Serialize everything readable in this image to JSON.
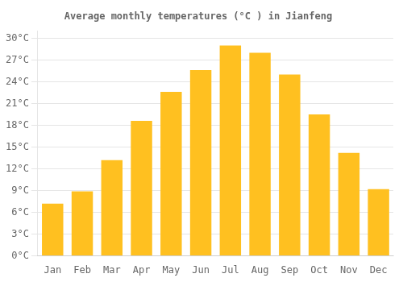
{
  "chart_data": {
    "type": "bar",
    "title": "Average monthly temperatures (°C ) in Jianfeng",
    "categories": [
      "Jan",
      "Feb",
      "Mar",
      "Apr",
      "May",
      "Jun",
      "Jul",
      "Aug",
      "Sep",
      "Oct",
      "Nov",
      "Dec"
    ],
    "values": [
      7.2,
      8.9,
      13.2,
      18.6,
      22.6,
      25.6,
      29.0,
      28.0,
      25.0,
      19.5,
      14.2,
      9.2
    ],
    "color": "#FFC020",
    "ylim": [
      0,
      31
    ],
    "yticks": [
      {
        "value": 0,
        "label": "0°C"
      },
      {
        "value": 3,
        "label": "3°C"
      },
      {
        "value": 6,
        "label": "6°C"
      },
      {
        "value": 9,
        "label": "9°C"
      },
      {
        "value": 12,
        "label": "12°C"
      },
      {
        "value": 15,
        "label": "15°C"
      },
      {
        "value": 18,
        "label": "18°C"
      },
      {
        "value": 21,
        "label": "21°C"
      },
      {
        "value": 24,
        "label": "24°C"
      },
      {
        "value": 27,
        "label": "27°C"
      },
      {
        "value": 30,
        "label": "30°C"
      }
    ],
    "grid": true
  }
}
